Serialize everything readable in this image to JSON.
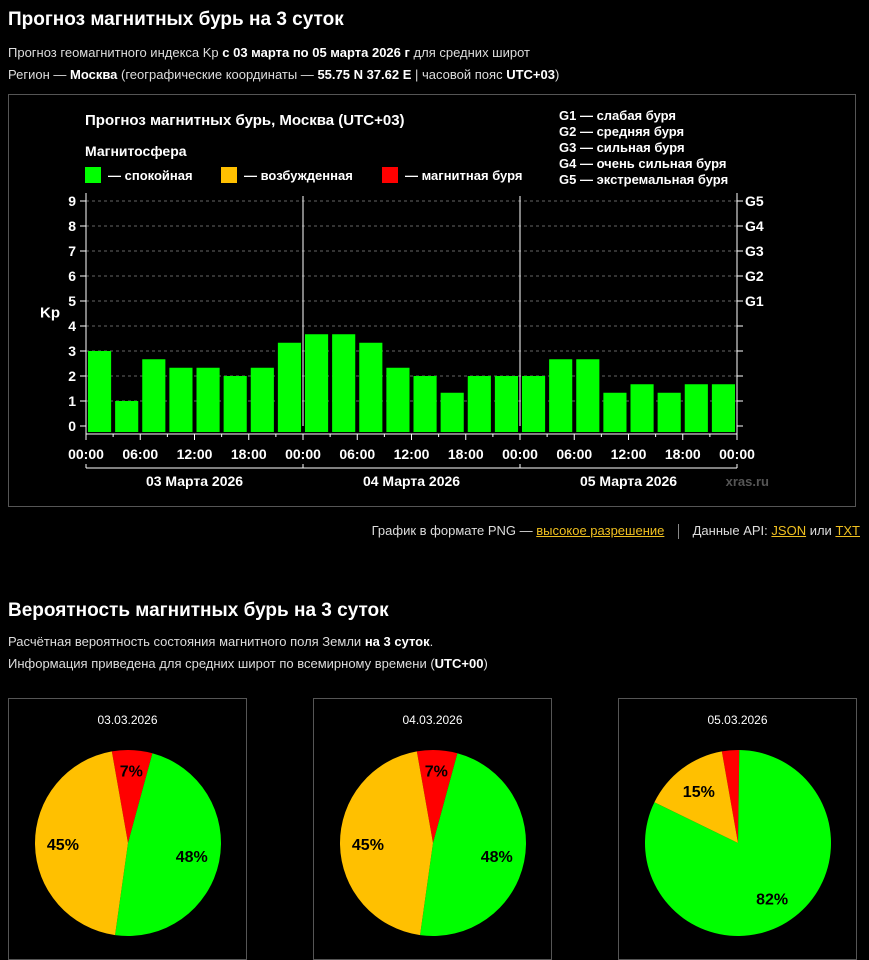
{
  "header": {
    "title": "Прогноз магнитных бурь на 3 суток",
    "line1_prefix": "Прогноз геомагнитного индекса Kp",
    "line1_bold": "с 03 марта по 05 марта 2026 г",
    "line1_suffix": "для средних широт",
    "line2_prefix": "Регион —",
    "line2_region": "Москва",
    "line2_mid": "(географические координаты —",
    "line2_coords": "55.75 N 37.62 E",
    "line2_tz_prefix": "| часовой пояс",
    "line2_tz": "UTC+03",
    "line2_end": ")"
  },
  "colors": {
    "quiet": "#00ff00",
    "excited": "#ffc000",
    "storm": "#ff0000",
    "link": "#f0c020"
  },
  "chart_data": [
    {
      "type": "bar",
      "title": "Прогноз магнитных бурь, Москва (UTC+03)",
      "legend_title": "Магнитосфера",
      "legend": [
        {
          "label": "— спокойная",
          "color": "#00ff00"
        },
        {
          "label": "— возбужденная",
          "color": "#ffc000"
        },
        {
          "label": "— магнитная буря",
          "color": "#ff0000"
        }
      ],
      "g_legend": [
        "G1 — слабая буря",
        "G2 — средняя буря",
        "G3 — сильная буря",
        "G4 — очень сильная буря",
        "G5 — экстремальная буря"
      ],
      "ylabel": "Kp",
      "ylim": [
        0,
        9
      ],
      "y_ticks": [
        "0",
        "1",
        "2",
        "3",
        "4",
        "5",
        "6",
        "7",
        "8",
        "9"
      ],
      "right_ticks": [
        {
          "value": 5,
          "label": "G1"
        },
        {
          "value": 6,
          "label": "G2"
        },
        {
          "value": 7,
          "label": "G3"
        },
        {
          "value": 8,
          "label": "G4"
        },
        {
          "value": 9,
          "label": "G5"
        }
      ],
      "x_tick_labels": [
        "00:00",
        "06:00",
        "12:00",
        "18:00",
        "00:00",
        "06:00",
        "12:00",
        "18:00",
        "00:00",
        "06:00",
        "12:00",
        "18:00",
        "00:00"
      ],
      "day_labels": [
        "03 Марта 2026",
        "04 Марта 2026",
        "05 Марта 2026"
      ],
      "values": [
        3.0,
        1.0,
        2.67,
        2.33,
        2.33,
        2.0,
        2.33,
        3.33,
        3.67,
        3.67,
        3.33,
        2.33,
        2.0,
        1.33,
        2.0,
        2.0,
        2.0,
        2.67,
        2.67,
        1.33,
        1.67,
        1.33,
        1.67,
        1.67
      ],
      "grid": true,
      "watermark": "xras.ru"
    },
    {
      "type": "pie",
      "title": "03.03.2026",
      "slices": [
        {
          "name": "спокойная",
          "value": 48,
          "label": "48%",
          "color": "#00ff00"
        },
        {
          "name": "возбужденная",
          "value": 45,
          "label": "45%",
          "color": "#ffc000"
        },
        {
          "name": "магнитная буря",
          "value": 7,
          "label": "7%",
          "color": "#ff0000"
        }
      ]
    },
    {
      "type": "pie",
      "title": "04.03.2026",
      "slices": [
        {
          "name": "спокойная",
          "value": 48,
          "label": "48%",
          "color": "#00ff00"
        },
        {
          "name": "возбужденная",
          "value": 45,
          "label": "45%",
          "color": "#ffc000"
        },
        {
          "name": "магнитная буря",
          "value": 7,
          "label": "7%",
          "color": "#ff0000"
        }
      ]
    },
    {
      "type": "pie",
      "title": "05.03.2026",
      "slices": [
        {
          "name": "спокойная",
          "value": 82,
          "label": "82%",
          "color": "#00ff00"
        },
        {
          "name": "возбужденная",
          "value": 15,
          "label": "15%",
          "color": "#ffc000"
        },
        {
          "name": "магнитная буря",
          "value": 3,
          "label": "",
          "color": "#ff0000"
        }
      ]
    }
  ],
  "links": {
    "png_text": "График в формате PNG —",
    "png_link": "высокое разрешение",
    "api_text": "Данные API:",
    "json_link": "JSON",
    "or_text": "или",
    "txt_link": "TXT"
  },
  "probability": {
    "title": "Вероятность магнитных бурь на 3 суток",
    "line1_prefix": "Расчётная вероятность состояния магнитного поля Земли",
    "line1_bold": "на 3 суток",
    "line1_end": ".",
    "line2_prefix": "Информация приведена для средних широт по всемирному времени (",
    "line2_bold": "UTC+00",
    "line2_end": ")"
  }
}
